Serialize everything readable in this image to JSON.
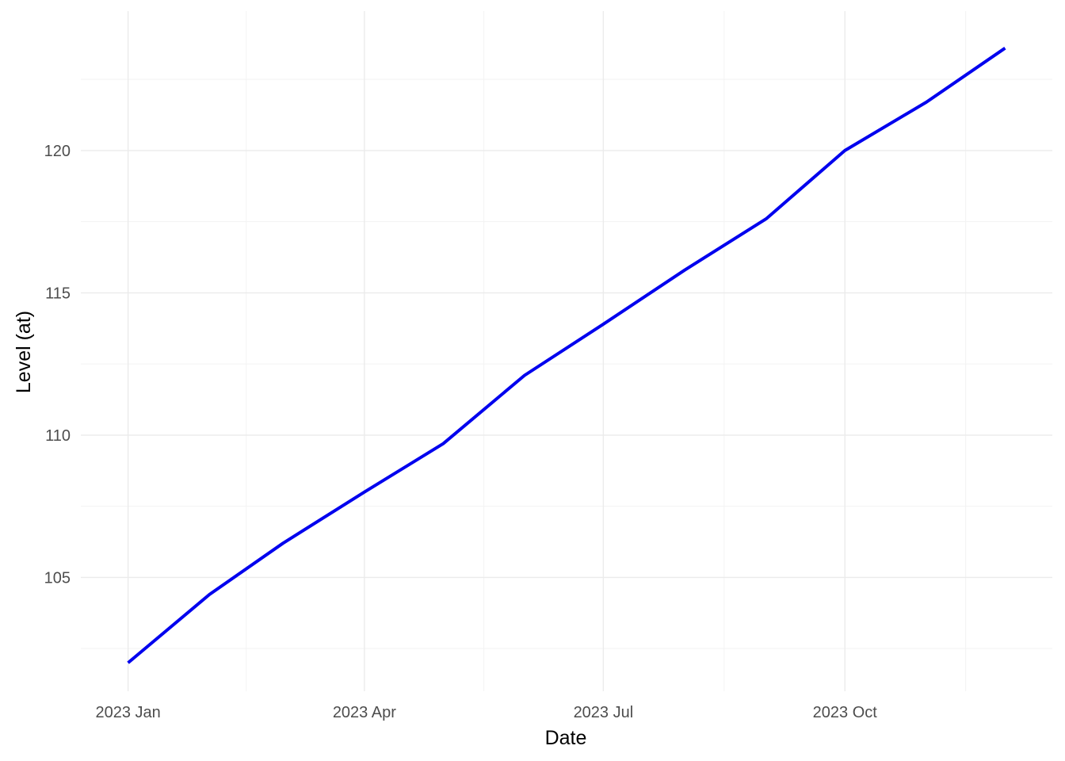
{
  "chart_data": {
    "type": "line",
    "xlabel": "Date",
    "ylabel": "Level (at)",
    "x_tick_labels": [
      "2023 Jan",
      "2023 Apr",
      "2023 Jul",
      "2023 Oct"
    ],
    "x_ticks": [
      "2023-01-01",
      "2023-04-01",
      "2023-07-01",
      "2023-10-01"
    ],
    "y_ticks": [
      105,
      110,
      115,
      120
    ],
    "y_tick_labels": [
      "105",
      "110",
      "115",
      "120"
    ],
    "xlim": [
      "2022-12-14",
      "2023-12-19"
    ],
    "ylim": [
      101.0,
      124.9
    ],
    "grid": true,
    "legend": "none",
    "line_color": "#0000ee",
    "series": [
      {
        "x": [
          "2023-01-01",
          "2023-02-01",
          "2023-03-01",
          "2023-04-01",
          "2023-05-01",
          "2023-06-01",
          "2023-07-01",
          "2023-08-01",
          "2023-09-01",
          "2023-10-01",
          "2023-11-01",
          "2023-12-01"
        ],
        "values": [
          102.0,
          104.4,
          106.2,
          108.0,
          109.7,
          112.1,
          113.9,
          115.8,
          117.6,
          120.0,
          121.7,
          123.6
        ]
      }
    ]
  }
}
